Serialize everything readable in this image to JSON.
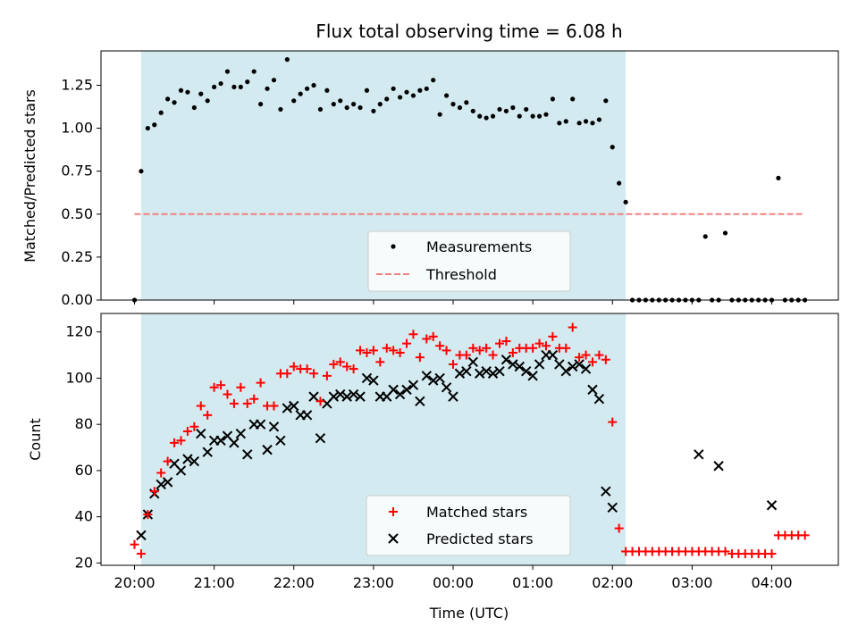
{
  "chart_data": [
    {
      "type": "scatter",
      "title": "Flux total observing time = 6.08 h",
      "ylabel": "Matched/Predicted stars",
      "xlabel": "",
      "ylim": [
        0,
        1.45
      ],
      "yticks": [
        0,
        0.25,
        0.5,
        0.75,
        1.0,
        1.25
      ],
      "ytick_labels": [
        "0.00",
        "0.25",
        "0.50",
        "0.75",
        "1.00",
        "1.25"
      ],
      "shaded_span": [
        "20:05",
        "02:10"
      ],
      "threshold": 0.5,
      "threshold_x_range": [
        "20:00",
        "04:25"
      ],
      "legend": {
        "position": "lower-center",
        "entries": [
          "Measurements",
          "Threshold"
        ]
      },
      "colors": {
        "span": "#d3eaf0",
        "threshold": "#f08080",
        "points": "#000000"
      },
      "series": [
        {
          "name": "Measurements",
          "x": [
            "20:00",
            "20:05",
            "20:10",
            "20:15",
            "20:20",
            "20:25",
            "20:30",
            "20:35",
            "20:40",
            "20:45",
            "20:50",
            "20:55",
            "21:00",
            "21:05",
            "21:10",
            "21:15",
            "21:20",
            "21:25",
            "21:30",
            "21:35",
            "21:40",
            "21:45",
            "21:50",
            "21:55",
            "22:00",
            "22:05",
            "22:10",
            "22:15",
            "22:20",
            "22:25",
            "22:30",
            "22:35",
            "22:40",
            "22:45",
            "22:50",
            "22:55",
            "23:00",
            "23:05",
            "23:10",
            "23:15",
            "23:20",
            "23:25",
            "23:30",
            "23:35",
            "23:40",
            "23:45",
            "23:50",
            "23:55",
            "00:00",
            "00:05",
            "00:10",
            "00:15",
            "00:20",
            "00:25",
            "00:30",
            "00:35",
            "00:40",
            "00:45",
            "00:50",
            "00:55",
            "01:00",
            "01:05",
            "01:10",
            "01:15",
            "01:20",
            "01:25",
            "01:30",
            "01:35",
            "01:40",
            "01:45",
            "01:50",
            "01:55",
            "02:00",
            "02:05",
            "02:10",
            "02:15",
            "02:20",
            "02:25",
            "02:30",
            "02:35",
            "02:40",
            "02:45",
            "02:50",
            "02:55",
            "03:00",
            "03:05",
            "03:10",
            "03:15",
            "03:20",
            "03:25",
            "03:30",
            "03:35",
            "03:40",
            "03:45",
            "03:50",
            "03:55",
            "04:00",
            "04:05",
            "04:10",
            "04:15",
            "04:20",
            "04:25"
          ],
          "y": [
            0.0,
            0.75,
            1.0,
            1.02,
            1.09,
            1.17,
            1.15,
            1.22,
            1.21,
            1.12,
            1.2,
            1.16,
            1.24,
            1.26,
            1.33,
            1.24,
            1.24,
            1.27,
            1.33,
            1.14,
            1.23,
            1.28,
            1.11,
            1.4,
            1.16,
            1.2,
            1.23,
            1.25,
            1.11,
            1.22,
            1.14,
            1.16,
            1.12,
            1.14,
            1.12,
            1.22,
            1.1,
            1.14,
            1.17,
            1.23,
            1.18,
            1.21,
            1.19,
            1.22,
            1.23,
            1.28,
            1.08,
            1.19,
            1.14,
            1.12,
            1.15,
            1.1,
            1.07,
            1.06,
            1.07,
            1.11,
            1.1,
            1.12,
            1.07,
            1.11,
            1.07,
            1.07,
            1.08,
            1.17,
            1.03,
            1.04,
            1.17,
            1.03,
            1.04,
            1.03,
            1.05,
            1.16,
            0.89,
            0.68,
            0.57,
            0.0,
            0.0,
            0.0,
            0.0,
            0.0,
            0.0,
            0.0,
            0.0,
            0.0,
            0.0,
            0.0,
            0.37,
            0.0,
            0.0,
            0.39,
            0.0,
            0.0,
            0.0,
            0.0,
            0.0,
            0.0,
            0.0,
            0.71,
            0.0,
            0.0,
            0.0,
            0.0
          ]
        }
      ]
    },
    {
      "type": "scatter",
      "xlabel": "Time (UTC)",
      "ylabel": "Count",
      "ylim": [
        19,
        128
      ],
      "yticks": [
        20,
        40,
        60,
        80,
        100,
        120
      ],
      "xticks": [
        "20:00",
        "21:00",
        "22:00",
        "23:00",
        "00:00",
        "01:00",
        "02:00",
        "03:00",
        "04:00"
      ],
      "shaded_span": [
        "20:05",
        "02:10"
      ],
      "legend": {
        "position": "lower-center",
        "entries": [
          "Matched stars",
          "Predicted stars"
        ]
      },
      "colors": {
        "matched": "#ff0000",
        "predicted": "#000000"
      },
      "x": [
        "20:00",
        "20:05",
        "20:10",
        "20:15",
        "20:20",
        "20:25",
        "20:30",
        "20:35",
        "20:40",
        "20:45",
        "20:50",
        "20:55",
        "21:00",
        "21:05",
        "21:10",
        "21:15",
        "21:20",
        "21:25",
        "21:30",
        "21:35",
        "21:40",
        "21:45",
        "21:50",
        "21:55",
        "22:00",
        "22:05",
        "22:10",
        "22:15",
        "22:20",
        "22:25",
        "22:30",
        "22:35",
        "22:40",
        "22:45",
        "22:50",
        "22:55",
        "23:00",
        "23:05",
        "23:10",
        "23:15",
        "23:20",
        "23:25",
        "23:30",
        "23:35",
        "23:40",
        "23:45",
        "23:50",
        "23:55",
        "00:00",
        "00:05",
        "00:10",
        "00:15",
        "00:20",
        "00:25",
        "00:30",
        "00:35",
        "00:40",
        "00:45",
        "00:50",
        "00:55",
        "01:00",
        "01:05",
        "01:10",
        "01:15",
        "01:20",
        "01:25",
        "01:30",
        "01:35",
        "01:40",
        "01:45",
        "01:50",
        "01:55",
        "02:00",
        "02:05",
        "02:10",
        "02:15",
        "02:20",
        "02:25",
        "02:30",
        "02:35",
        "02:40",
        "02:45",
        "02:50",
        "02:55",
        "03:00",
        "03:05",
        "03:10",
        "03:15",
        "03:20",
        "03:25",
        "03:30",
        "03:35",
        "03:40",
        "03:45",
        "03:50",
        "03:55",
        "04:00",
        "04:05",
        "04:10",
        "04:15",
        "04:20",
        "04:25"
      ],
      "series": [
        {
          "name": "Matched stars",
          "values": [
            28,
            24,
            41,
            51,
            59,
            64,
            72,
            73,
            77,
            79,
            88,
            84,
            96,
            97,
            93,
            89,
            96,
            89,
            91,
            98,
            88,
            88,
            102,
            102,
            105,
            104,
            104,
            102,
            90,
            101,
            106,
            107,
            105,
            104,
            112,
            111,
            112,
            107,
            113,
            112,
            111,
            115,
            119,
            109,
            117,
            118,
            114,
            112,
            106,
            110,
            110,
            113,
            112,
            113,
            110,
            115,
            116,
            111,
            113,
            113,
            113,
            115,
            114,
            118,
            113,
            113,
            122,
            109,
            110,
            107,
            110,
            108,
            81,
            35,
            25,
            25,
            25,
            25,
            25,
            25,
            25,
            25,
            25,
            25,
            25,
            25,
            25,
            25,
            25,
            25,
            24,
            24,
            24,
            24,
            24,
            24,
            24,
            32,
            32,
            32,
            32,
            32
          ]
        },
        {
          "name": "Predicted stars",
          "values": [
            null,
            32,
            41,
            50,
            54,
            55,
            63,
            60,
            65,
            64,
            76,
            68,
            73,
            73,
            75,
            72,
            76,
            67,
            80,
            80,
            69,
            79,
            73,
            87,
            88,
            84,
            84,
            92,
            74,
            89,
            92,
            93,
            92,
            93,
            92,
            100,
            99,
            92,
            92,
            95,
            93,
            95,
            97,
            90,
            101,
            99,
            100,
            96,
            92,
            102,
            103,
            107,
            102,
            103,
            102,
            103,
            108,
            106,
            105,
            103,
            101,
            106,
            110,
            110,
            106,
            103,
            105,
            106,
            104,
            95,
            91,
            51,
            44,
            null,
            null,
            null,
            null,
            null,
            null,
            null,
            null,
            null,
            null,
            null,
            null,
            67,
            null,
            null,
            62,
            null,
            null,
            null,
            null,
            null,
            null,
            null,
            45,
            null,
            null,
            null,
            null,
            null
          ]
        }
      ]
    }
  ]
}
